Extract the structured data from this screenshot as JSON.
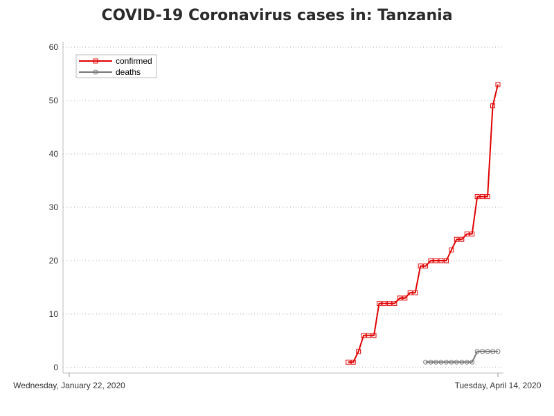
{
  "chart_data": {
    "type": "line",
    "title": "COVID-19 Coronavirus cases in: Tanzania",
    "xlabel": "",
    "ylabel": "",
    "x_start_label": "Wednesday, January 22, 2020",
    "x_end_label": "Tuesday, April 14, 2020",
    "x_range": [
      "2020-01-22",
      "2020-04-14"
    ],
    "ylim": [
      0,
      60
    ],
    "yticks": [
      0,
      10,
      20,
      30,
      40,
      50,
      60
    ],
    "grid": "horizontal-dotted",
    "legend": "top-left",
    "series": [
      {
        "name": "confirmed",
        "color": "#e00000",
        "marker": "square",
        "points": [
          [
            "2020-03-16",
            1
          ],
          [
            "2020-03-17",
            1
          ],
          [
            "2020-03-18",
            3
          ],
          [
            "2020-03-19",
            6
          ],
          [
            "2020-03-20",
            6
          ],
          [
            "2020-03-21",
            6
          ],
          [
            "2020-03-22",
            12
          ],
          [
            "2020-03-23",
            12
          ],
          [
            "2020-03-24",
            12
          ],
          [
            "2020-03-25",
            12
          ],
          [
            "2020-03-26",
            13
          ],
          [
            "2020-03-27",
            13
          ],
          [
            "2020-03-28",
            14
          ],
          [
            "2020-03-29",
            14
          ],
          [
            "2020-03-30",
            19
          ],
          [
            "2020-03-31",
            19
          ],
          [
            "2020-04-01",
            20
          ],
          [
            "2020-04-02",
            20
          ],
          [
            "2020-04-03",
            20
          ],
          [
            "2020-04-04",
            20
          ],
          [
            "2020-04-05",
            22
          ],
          [
            "2020-04-06",
            24
          ],
          [
            "2020-04-07",
            24
          ],
          [
            "2020-04-08",
            25
          ],
          [
            "2020-04-09",
            25
          ],
          [
            "2020-04-10",
            32
          ],
          [
            "2020-04-11",
            32
          ],
          [
            "2020-04-12",
            32
          ],
          [
            "2020-04-13",
            49
          ],
          [
            "2020-04-14",
            53
          ]
        ]
      },
      {
        "name": "deaths",
        "color": "#777777",
        "marker": "circle",
        "points": [
          [
            "2020-03-31",
            1
          ],
          [
            "2020-04-01",
            1
          ],
          [
            "2020-04-02",
            1
          ],
          [
            "2020-04-03",
            1
          ],
          [
            "2020-04-04",
            1
          ],
          [
            "2020-04-05",
            1
          ],
          [
            "2020-04-06",
            1
          ],
          [
            "2020-04-07",
            1
          ],
          [
            "2020-04-08",
            1
          ],
          [
            "2020-04-09",
            1
          ],
          [
            "2020-04-10",
            3
          ],
          [
            "2020-04-11",
            3
          ],
          [
            "2020-04-12",
            3
          ],
          [
            "2020-04-13",
            3
          ],
          [
            "2020-04-14",
            3
          ]
        ]
      }
    ]
  }
}
